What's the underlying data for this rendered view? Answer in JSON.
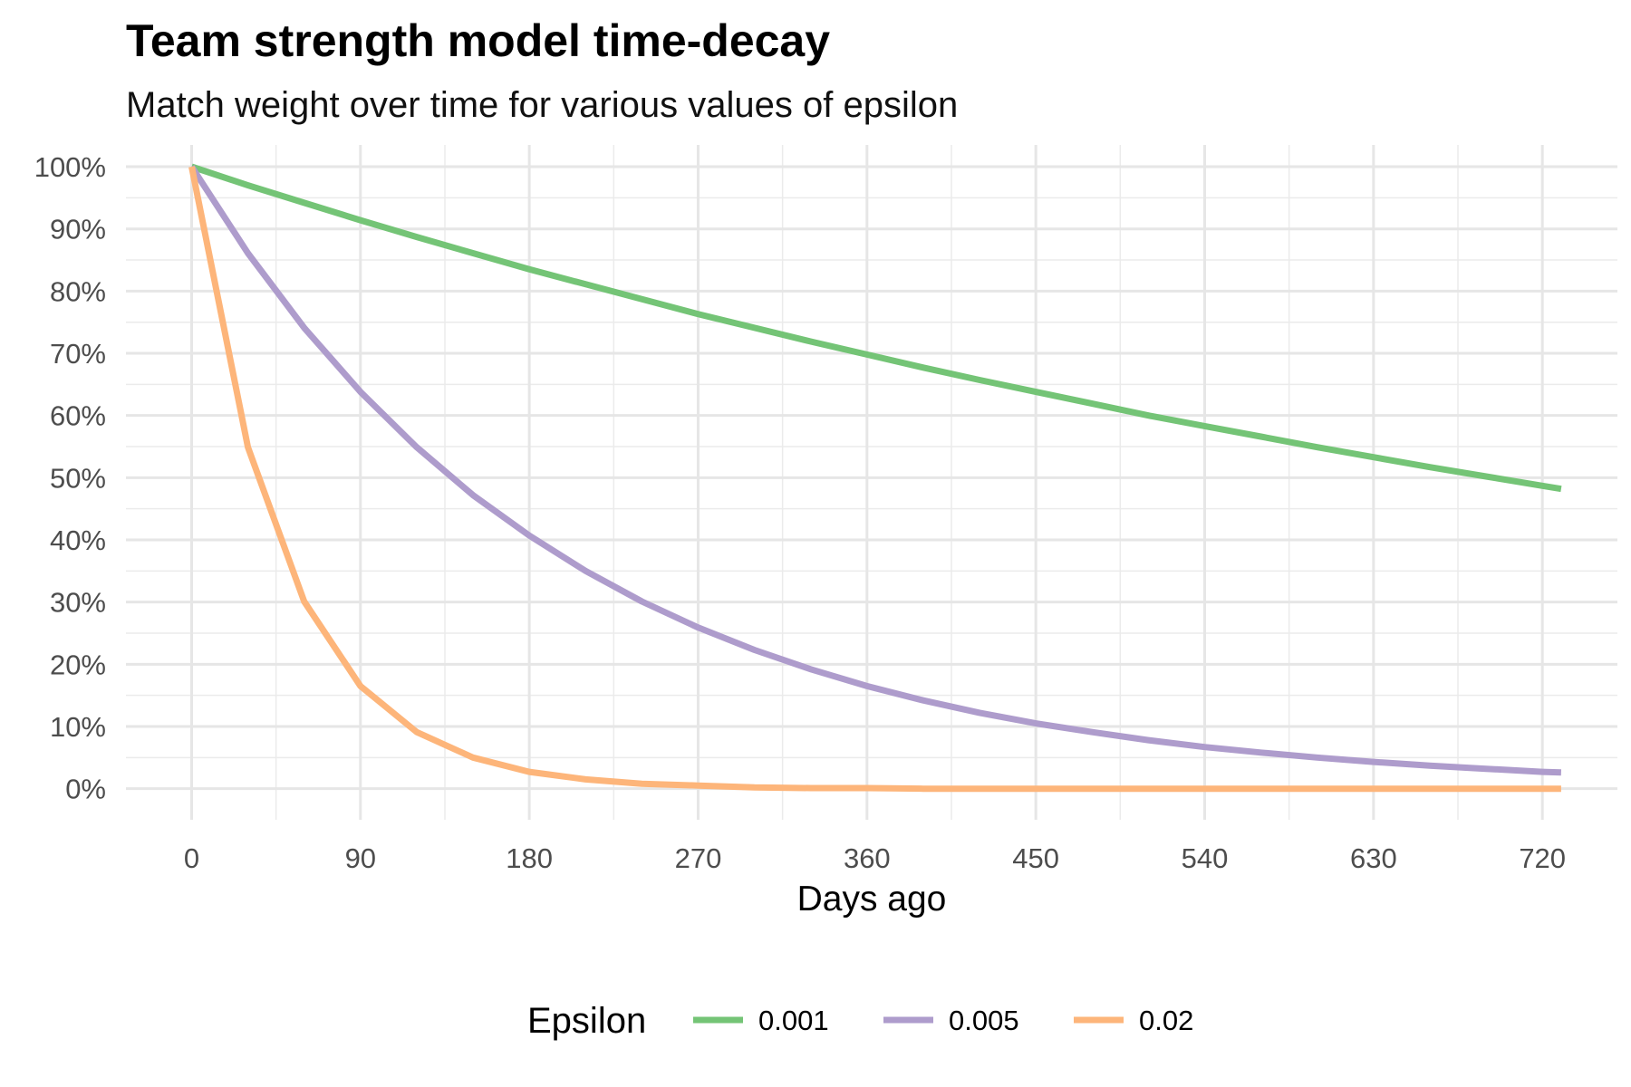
{
  "chart_data": {
    "type": "line",
    "title": "Team strength model time-decay",
    "subtitle": "Match weight over time for various values of epsilon",
    "xlabel": "Days ago",
    "ylabel": "",
    "xlim": [
      -35,
      760
    ],
    "ylim": [
      -0.05,
      1.035
    ],
    "x_ticks": [
      0,
      90,
      180,
      270,
      360,
      450,
      540,
      630,
      720
    ],
    "y_ticks": [
      0,
      0.1,
      0.2,
      0.3,
      0.4,
      0.5,
      0.6,
      0.7,
      0.8,
      0.9,
      1.0
    ],
    "x_tick_labels": [
      "0",
      "90",
      "180",
      "270",
      "360",
      "450",
      "540",
      "630",
      "720"
    ],
    "y_tick_labels": [
      "0%",
      "10%",
      "20%",
      "30%",
      "40%",
      "50%",
      "60%",
      "70%",
      "80%",
      "90%",
      "100%"
    ],
    "grid": true,
    "legend": {
      "title": "Epsilon",
      "position": "bottom"
    },
    "x": [
      0,
      30,
      60,
      90,
      120,
      150,
      180,
      210,
      240,
      270,
      300,
      330,
      360,
      390,
      420,
      450,
      480,
      510,
      540,
      570,
      600,
      630,
      660,
      690,
      720,
      730
    ],
    "series": [
      {
        "name": "0.001",
        "color": "#74c476",
        "values": [
          1.0,
          0.97,
          0.942,
          0.914,
          0.887,
          0.861,
          0.835,
          0.811,
          0.787,
          0.763,
          0.741,
          0.719,
          0.698,
          0.677,
          0.657,
          0.638,
          0.619,
          0.6,
          0.583,
          0.566,
          0.549,
          0.533,
          0.517,
          0.502,
          0.487,
          0.482
        ]
      },
      {
        "name": "0.005",
        "color": "#ae9ccc",
        "values": [
          1.0,
          0.861,
          0.741,
          0.638,
          0.549,
          0.472,
          0.407,
          0.35,
          0.301,
          0.259,
          0.223,
          0.192,
          0.165,
          0.142,
          0.122,
          0.105,
          0.091,
          0.078,
          0.067,
          0.058,
          0.05,
          0.043,
          0.037,
          0.032,
          0.027,
          0.026
        ]
      },
      {
        "name": "0.02",
        "color": "#fdb57a",
        "values": [
          1.0,
          0.549,
          0.301,
          0.165,
          0.091,
          0.05,
          0.027,
          0.015,
          0.008,
          0.005,
          0.002,
          0.001,
          0.001,
          0.0,
          0.0,
          0.0,
          0.0,
          0.0,
          0.0,
          0.0,
          0.0,
          0.0,
          0.0,
          0.0,
          0.0,
          0.0
        ]
      }
    ]
  }
}
